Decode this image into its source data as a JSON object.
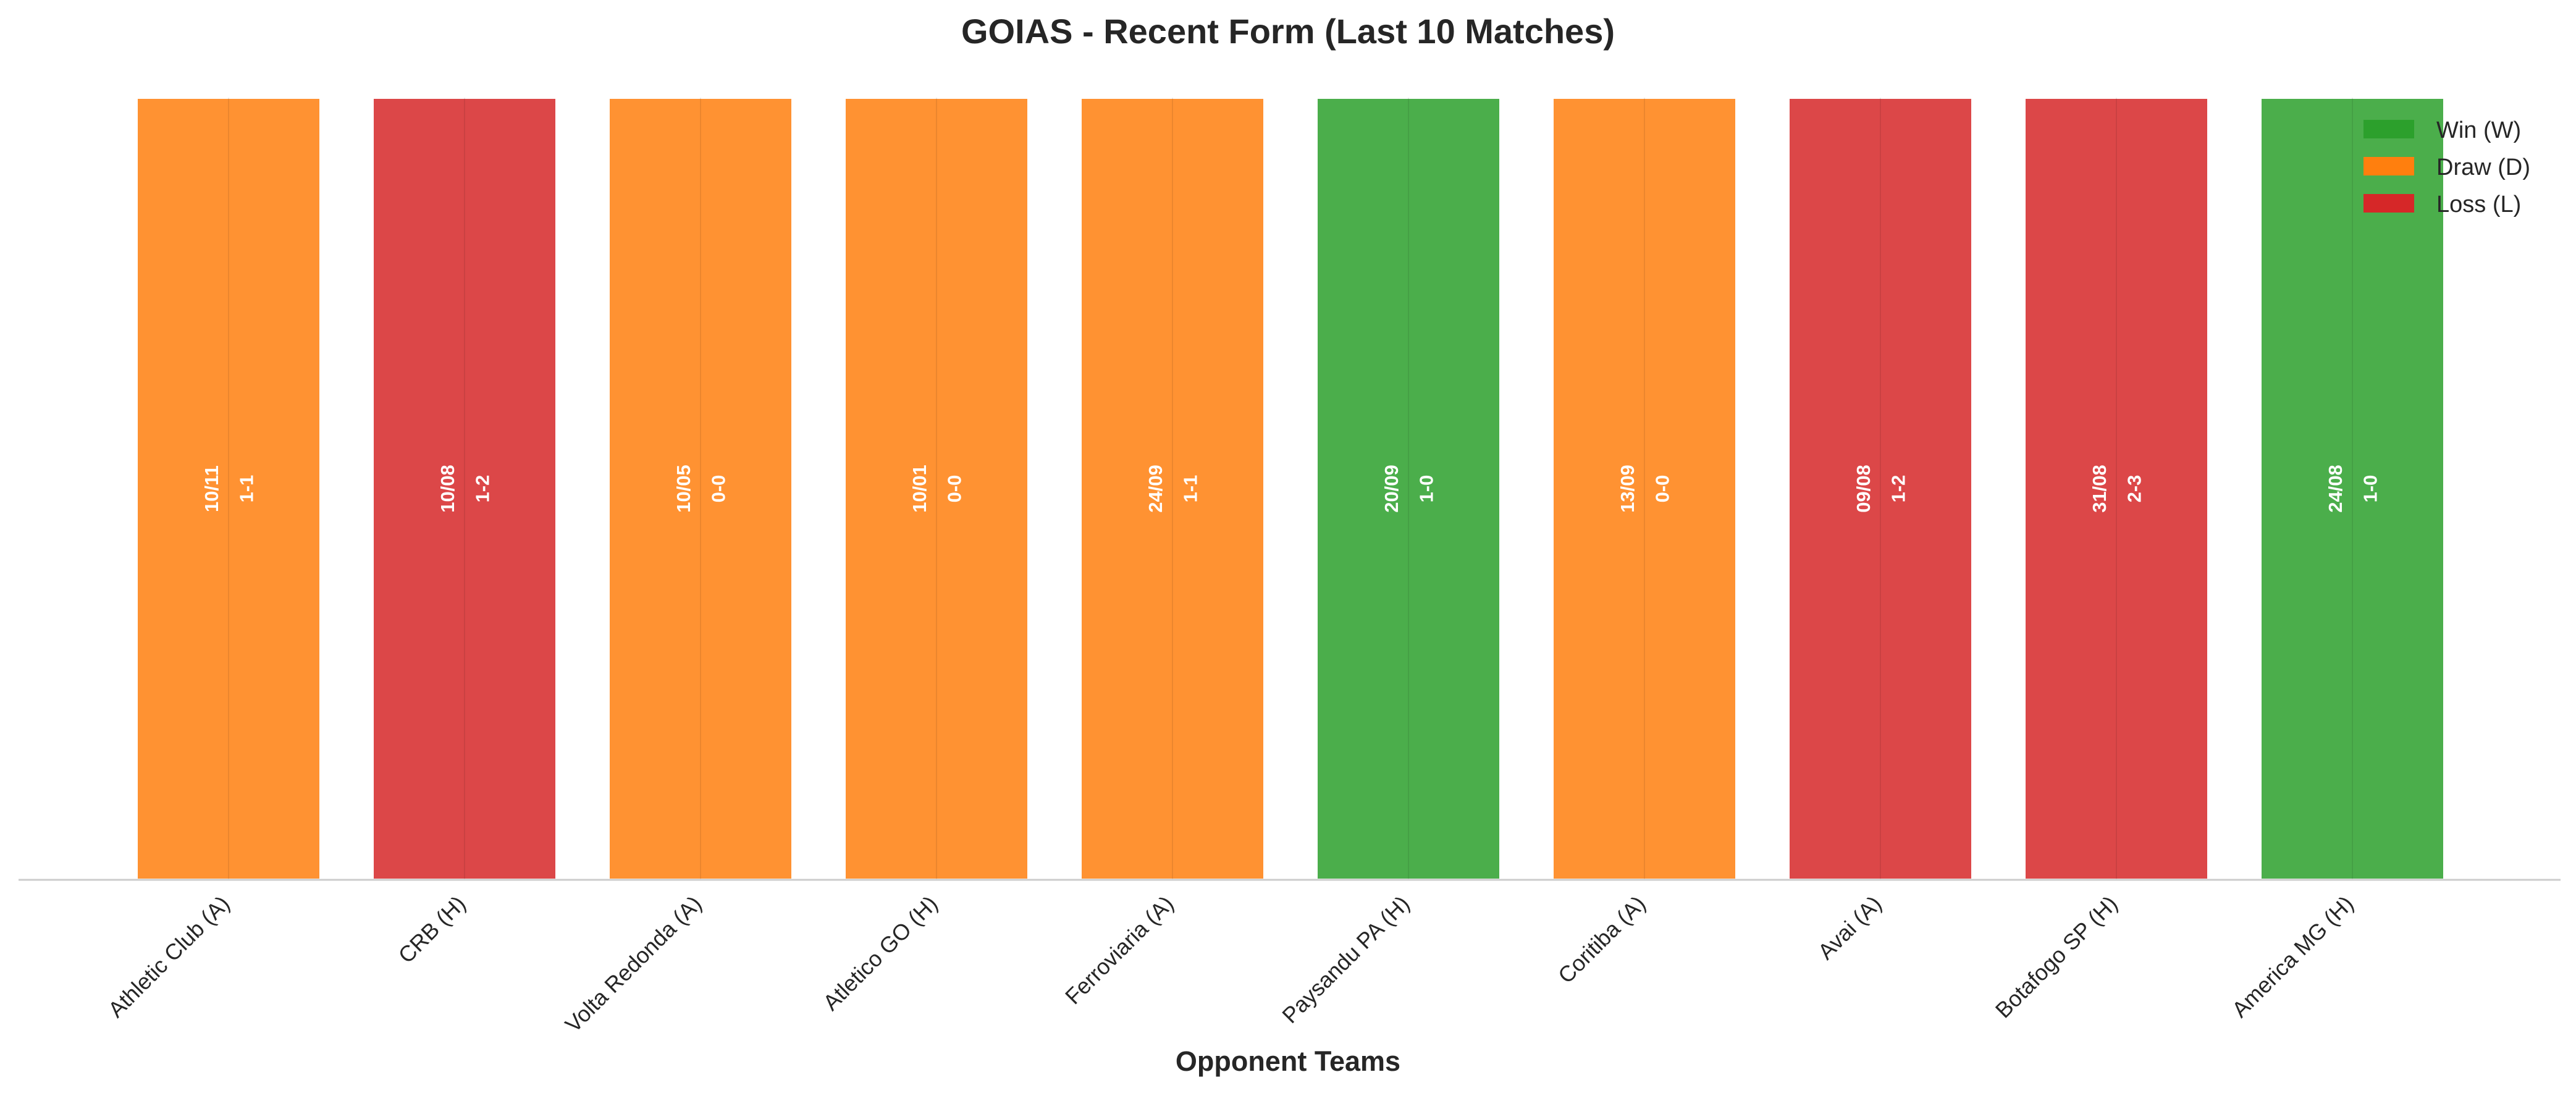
{
  "chart_data": {
    "type": "bar",
    "title": "GOIAS - Recent Form (Last 10 Matches)",
    "xlabel": "Opponent Teams",
    "ylabel": "",
    "ylim": [
      0,
      1
    ],
    "grid": false,
    "legend_position": "top-right",
    "categories": [
      "Athletic Club (A)",
      "CRB (H)",
      "Volta Redonda (A)",
      "Atletico GO (H)",
      "Ferroviaria (A)",
      "Paysandu PA (H)",
      "Coritiba (A)",
      "Avai (A)",
      "Botafogo SP (H)",
      "America MG (H)"
    ],
    "values": [
      1,
      1,
      1,
      1,
      1,
      1,
      1,
      1,
      1,
      1
    ],
    "results": [
      "D",
      "L",
      "D",
      "D",
      "D",
      "W",
      "D",
      "L",
      "L",
      "W"
    ],
    "dates": [
      "10/11",
      "10/08",
      "10/05",
      "10/01",
      "24/09",
      "20/09",
      "13/09",
      "09/08",
      "31/08",
      "24/08"
    ],
    "scores": [
      "1-1",
      "1-2",
      "0-0",
      "0-0",
      "1-1",
      "1-0",
      "0-0",
      "1-2",
      "2-3",
      "1-0"
    ],
    "legend": [
      {
        "key": "W",
        "label": "Win (W)",
        "color": "#2ca02c"
      },
      {
        "key": "D",
        "label": "Draw (D)",
        "color": "#ff7f0e"
      },
      {
        "key": "L",
        "label": "Loss (L)",
        "color": "#d62728"
      }
    ]
  }
}
